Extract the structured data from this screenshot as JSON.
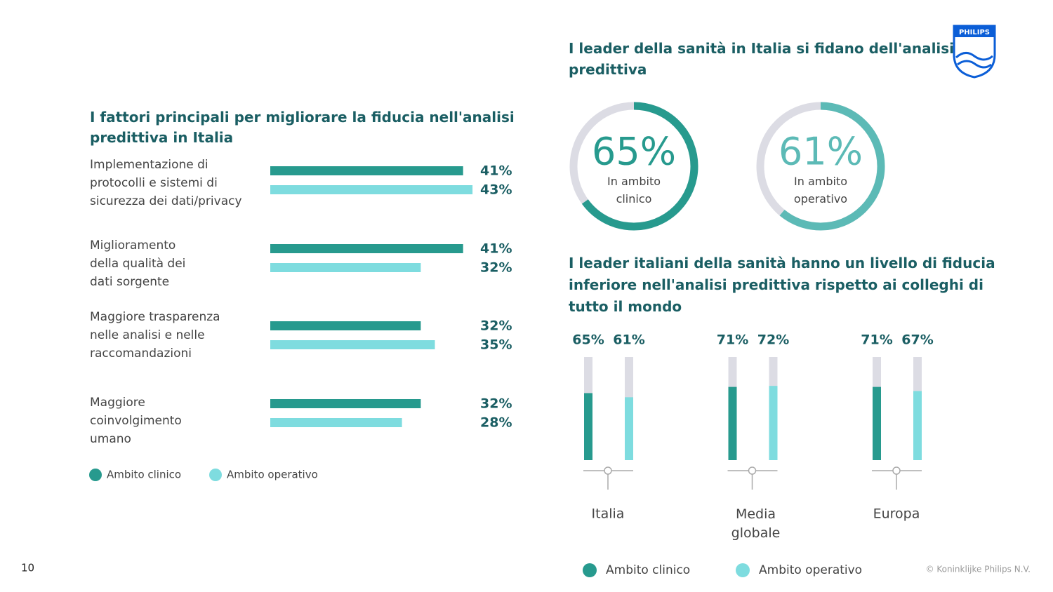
{
  "page_number": "10",
  "copyright": "© Koninklijke Philips N.V.",
  "logo": "PHILIPS",
  "chart_data": [
    {
      "type": "hbar",
      "title": "I fattori principali per migliorare la fiducia nell'analisi\npredittiva in Italia",
      "categories": [
        "Implementazione di\nprotocolli e sistemi di\nsicurezza dei dati/privacy",
        "Miglioramento\ndella qualità dei\ndati sorgente",
        "Maggiore trasparenza\nnelle analisi e nelle\nraccomandazioni",
        "Maggiore\ncoinvolgimento\numano"
      ],
      "series": [
        {
          "name": "Ambito clinico",
          "color": "#279a8e",
          "values": [
            41,
            41,
            32,
            32
          ],
          "value_labels": [
            "41%",
            "41%",
            "32%",
            "32%"
          ]
        },
        {
          "name": "Ambito operativo",
          "color": "#7edcdf",
          "values": [
            43,
            32,
            35,
            28
          ],
          "value_labels": [
            "43%",
            "32%",
            "35%",
            "28%"
          ]
        }
      ]
    },
    {
      "type": "donut",
      "title": "I leader della sanità in Italia si fidano dell'analisi\npredittiva",
      "categories": [
        "In ambito\nclinico",
        "In ambito\noperativo"
      ],
      "values": [
        65,
        61
      ],
      "value_labels": [
        "65%",
        "61%"
      ],
      "colors": [
        "#279a8e",
        "#5cbab6"
      ],
      "track_color": "#dcdce4"
    },
    {
      "type": "bar",
      "title": "I leader italiani della sanità hanno un livello di fiducia\ninferiore nell'analisi predittiva rispetto ai colleghi di\ntutto il mondo",
      "categories": [
        "Italia",
        "Media\nglobale",
        "Europa"
      ],
      "ylim": [
        0,
        100
      ],
      "track_color": "#dcdce4",
      "series": [
        {
          "name": "Ambito clinico",
          "color": "#279a8e",
          "values": [
            65,
            71,
            71
          ],
          "value_labels": [
            "65%",
            "71%",
            "71%"
          ]
        },
        {
          "name": "Ambito operativo",
          "color": "#7edcdf",
          "values": [
            61,
            72,
            67
          ],
          "value_labels": [
            "61%",
            "72%",
            "67%"
          ]
        }
      ]
    }
  ]
}
